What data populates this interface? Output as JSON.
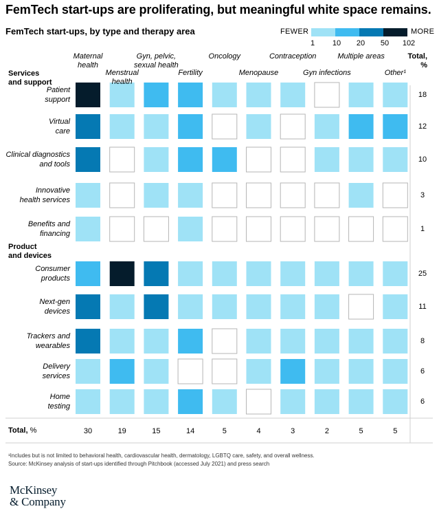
{
  "headline": "FemTech start-ups are proliferating, but meaningful white space remains.",
  "chart_data": {
    "type": "heatmap",
    "title": "FemTech start-ups, by type and therapy area",
    "legend": {
      "low_label": "FEWER",
      "high_label": "MORE",
      "ticks": [
        "1",
        "10",
        "20",
        "50",
        "102"
      ],
      "colors": [
        "#9fe2f6",
        "#3fbbf0",
        "#0579b3",
        "#051c2c"
      ]
    },
    "colors": {
      "empty": "#ffffff",
      "band1": "#9fe2f6",
      "band2": "#3fbbf0",
      "band3": "#0579b3",
      "band4": "#051c2c",
      "border": "#b5b5b5",
      "line": "#cfcfcf"
    },
    "columns": [
      "Maternal health",
      "Menstrual health",
      "Gyn, pelvic, sexual health",
      "Fertility",
      "Oncology",
      "Menopause",
      "Contraception",
      "Gyn infections",
      "Multiple areas",
      "Other¹"
    ],
    "total_label": "Total, %",
    "sections": [
      {
        "name": "Services and support",
        "rows": [
          0,
          1,
          2,
          3,
          4
        ]
      },
      {
        "name": "Product and devices",
        "rows": [
          5,
          6,
          7,
          8,
          9
        ]
      }
    ],
    "rows": [
      {
        "label": "Patient support",
        "levels": [
          4,
          1,
          2,
          2,
          1,
          1,
          1,
          0,
          1,
          1
        ],
        "total": "18"
      },
      {
        "label": "Virtual care",
        "levels": [
          3,
          1,
          1,
          2,
          0,
          1,
          0,
          1,
          2,
          2
        ],
        "total": "12"
      },
      {
        "label": "Clinical diagnostics and tools",
        "levels": [
          3,
          0,
          1,
          2,
          2,
          0,
          0,
          1,
          1,
          1
        ],
        "total": "10"
      },
      {
        "label": "Innovative health services",
        "levels": [
          1,
          0,
          1,
          1,
          0,
          0,
          0,
          0,
          1,
          0
        ],
        "total": "3"
      },
      {
        "label": "Benefits and financing",
        "levels": [
          1,
          0,
          0,
          1,
          0,
          0,
          0,
          0,
          0,
          0
        ],
        "total": "1"
      },
      {
        "label": "Consumer products",
        "levels": [
          2,
          4,
          3,
          1,
          1,
          1,
          1,
          1,
          1,
          1
        ],
        "total": "25"
      },
      {
        "label": "Next-gen devices",
        "levels": [
          3,
          1,
          3,
          1,
          1,
          1,
          1,
          1,
          0,
          1
        ],
        "total": "11"
      },
      {
        "label": "Trackers and wearables",
        "levels": [
          3,
          1,
          1,
          2,
          0,
          1,
          1,
          1,
          1,
          1
        ],
        "total": "8"
      },
      {
        "label": "Delivery services",
        "levels": [
          1,
          2,
          1,
          0,
          0,
          1,
          2,
          1,
          1,
          1
        ],
        "total": "6"
      },
      {
        "label": "Home testing",
        "levels": [
          1,
          1,
          1,
          2,
          1,
          0,
          1,
          1,
          1,
          1
        ],
        "total": "6"
      }
    ],
    "column_totals_label": "Total, %",
    "column_totals": [
      "30",
      "19",
      "15",
      "14",
      "5",
      "4",
      "3",
      "2",
      "5",
      "5"
    ]
  },
  "footnote_lines": [
    "¹Includes but is not limited to behavioral health, cardiovascular health, dermatology, LGBTQ care, safety, and overall wellness.",
    "Source: McKinsey analysis of start-ups identified through Pitchbook (accessed July 2021) and press search"
  ],
  "brand_lines": [
    "McKinsey",
    "& Company"
  ]
}
